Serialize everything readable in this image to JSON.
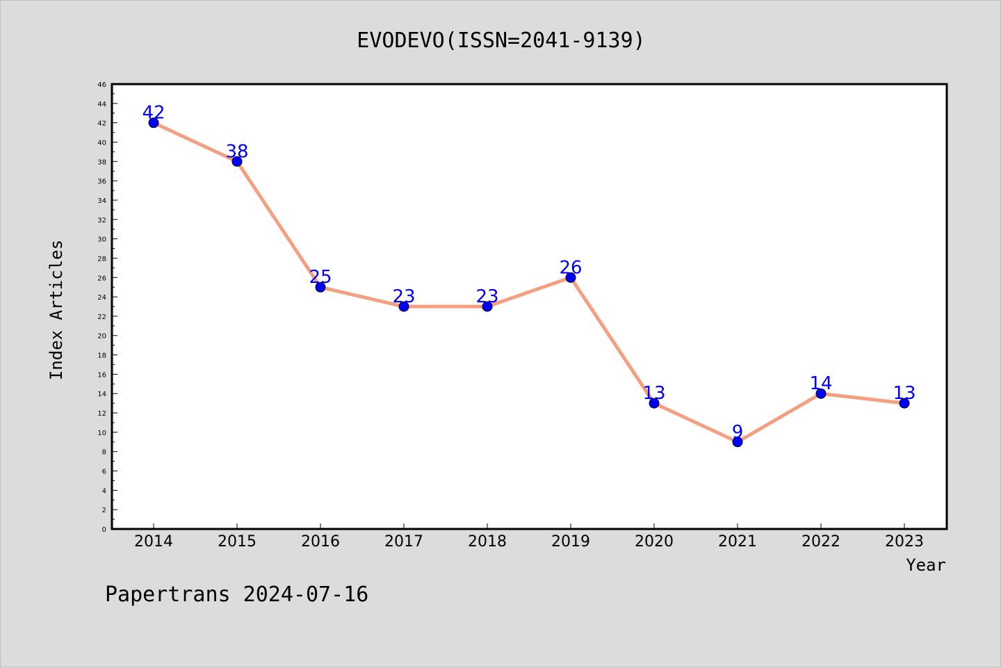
{
  "chart_data": {
    "type": "line",
    "title": "EVODEVO(ISSN=2041-9139)",
    "xlabel": "Year",
    "ylabel": "Index Articles",
    "categories": [
      "2014",
      "2015",
      "2016",
      "2017",
      "2018",
      "2019",
      "2020",
      "2021",
      "2022",
      "2023"
    ],
    "values": [
      42,
      38,
      25,
      23,
      23,
      26,
      13,
      9,
      14,
      13
    ],
    "data_labels": [
      "42",
      "38",
      "25",
      "23",
      "23",
      "26",
      "13",
      "9",
      "14",
      "13"
    ],
    "ylim": [
      0,
      46
    ],
    "yticks": [
      "0",
      "2",
      "4",
      "6",
      "8",
      "10",
      "12",
      "14",
      "16",
      "18",
      "20",
      "22",
      "24",
      "26",
      "28",
      "30",
      "32",
      "34",
      "36",
      "38",
      "40",
      "42",
      "44",
      "46"
    ],
    "grid": false,
    "line_color": "#f4a080",
    "marker_color": "#0000ff",
    "label_color": "#0000ff"
  },
  "footer": {
    "text": "Papertrans 2024-07-16"
  }
}
